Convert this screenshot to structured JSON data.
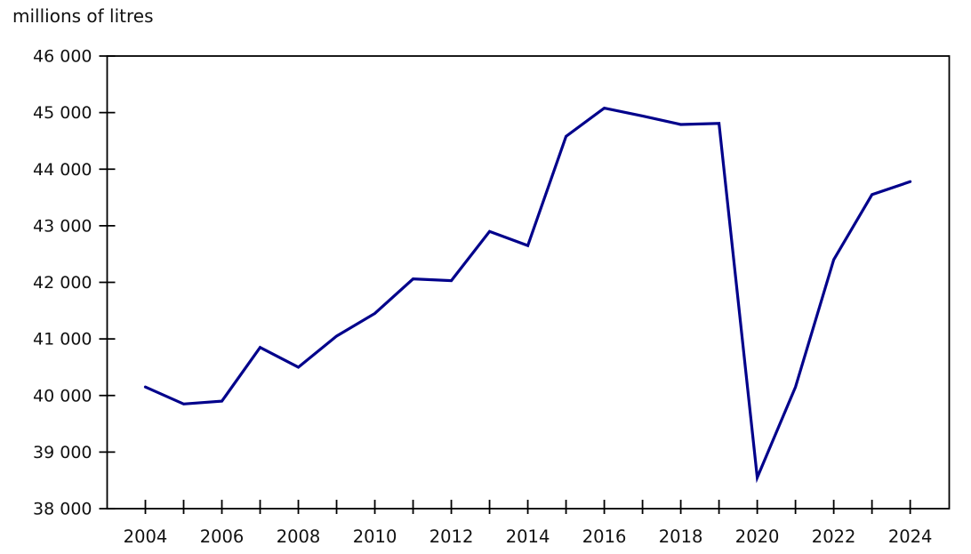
{
  "page": {
    "title": "millions of litres"
  },
  "chart_data": {
    "type": "line",
    "title": "millions of litres",
    "ylabel": "millions of litres",
    "xlabel": "",
    "legend_position": "none",
    "grid": false,
    "line_color": "#00008b",
    "axis_color": "#000000",
    "xlim": [
      2003,
      2025.02
    ],
    "ylim": [
      38000,
      46000
    ],
    "x": [
      2004,
      2005,
      2006,
      2007,
      2008,
      2009,
      2010,
      2011,
      2012,
      2013,
      2014,
      2015,
      2016,
      2017,
      2018,
      2019,
      2020,
      2021,
      2022,
      2023,
      2024
    ],
    "values": [
      40150,
      39850,
      39900,
      40850,
      40500,
      41050,
      41450,
      42060,
      42030,
      42900,
      42650,
      44580,
      45080,
      44940,
      44790,
      44810,
      38550,
      40150,
      42400,
      43550,
      43780
    ],
    "y_ticks": [
      {
        "value": 38000,
        "label": "38 000"
      },
      {
        "value": 39000,
        "label": "39 000"
      },
      {
        "value": 40000,
        "label": "40 000"
      },
      {
        "value": 41000,
        "label": "41 000"
      },
      {
        "value": 42000,
        "label": "42 000"
      },
      {
        "value": 43000,
        "label": "43 000"
      },
      {
        "value": 44000,
        "label": "44 000"
      },
      {
        "value": 45000,
        "label": "45 000"
      },
      {
        "value": 46000,
        "label": "46 000"
      }
    ],
    "x_tick_years": [
      2004,
      2005,
      2006,
      2007,
      2008,
      2009,
      2010,
      2011,
      2012,
      2013,
      2014,
      2015,
      2016,
      2017,
      2018,
      2019,
      2020,
      2021,
      2022,
      2023,
      2024
    ],
    "x_tick_labels": [
      {
        "year": 2004,
        "label": "2004"
      },
      {
        "year": 2006,
        "label": "2006"
      },
      {
        "year": 2008,
        "label": "2008"
      },
      {
        "year": 2010,
        "label": "2010"
      },
      {
        "year": 2012,
        "label": "2012"
      },
      {
        "year": 2014,
        "label": "2014"
      },
      {
        "year": 2016,
        "label": "2016"
      },
      {
        "year": 2018,
        "label": "2018"
      },
      {
        "year": 2020,
        "label": "2020"
      },
      {
        "year": 2022,
        "label": "2022"
      },
      {
        "year": 2024,
        "label": "2024"
      }
    ]
  }
}
